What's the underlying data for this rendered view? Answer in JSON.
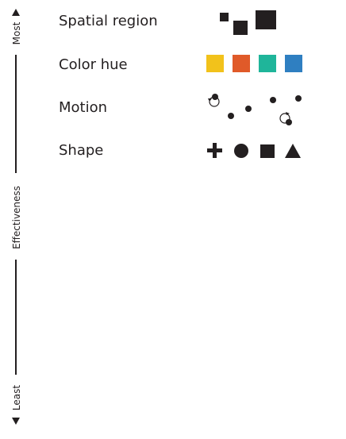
{
  "axis": {
    "top_label": "Most",
    "middle_label": "Effectiveness",
    "bottom_label": "Least"
  },
  "channels": [
    {
      "label": "Spatial region",
      "glyph": "squares-of-increasing-size"
    },
    {
      "label": "Color hue",
      "glyph": "colored-squares",
      "colors": [
        "#f2c21b",
        "#e05a29",
        "#1fb59a",
        "#2f7fc1"
      ]
    },
    {
      "label": "Motion",
      "glyph": "moving-dots-with-rotation-arrows"
    },
    {
      "label": "Shape",
      "glyph": "plus-circle-square-triangle"
    }
  ],
  "colors": {
    "ink": "#231f20"
  }
}
